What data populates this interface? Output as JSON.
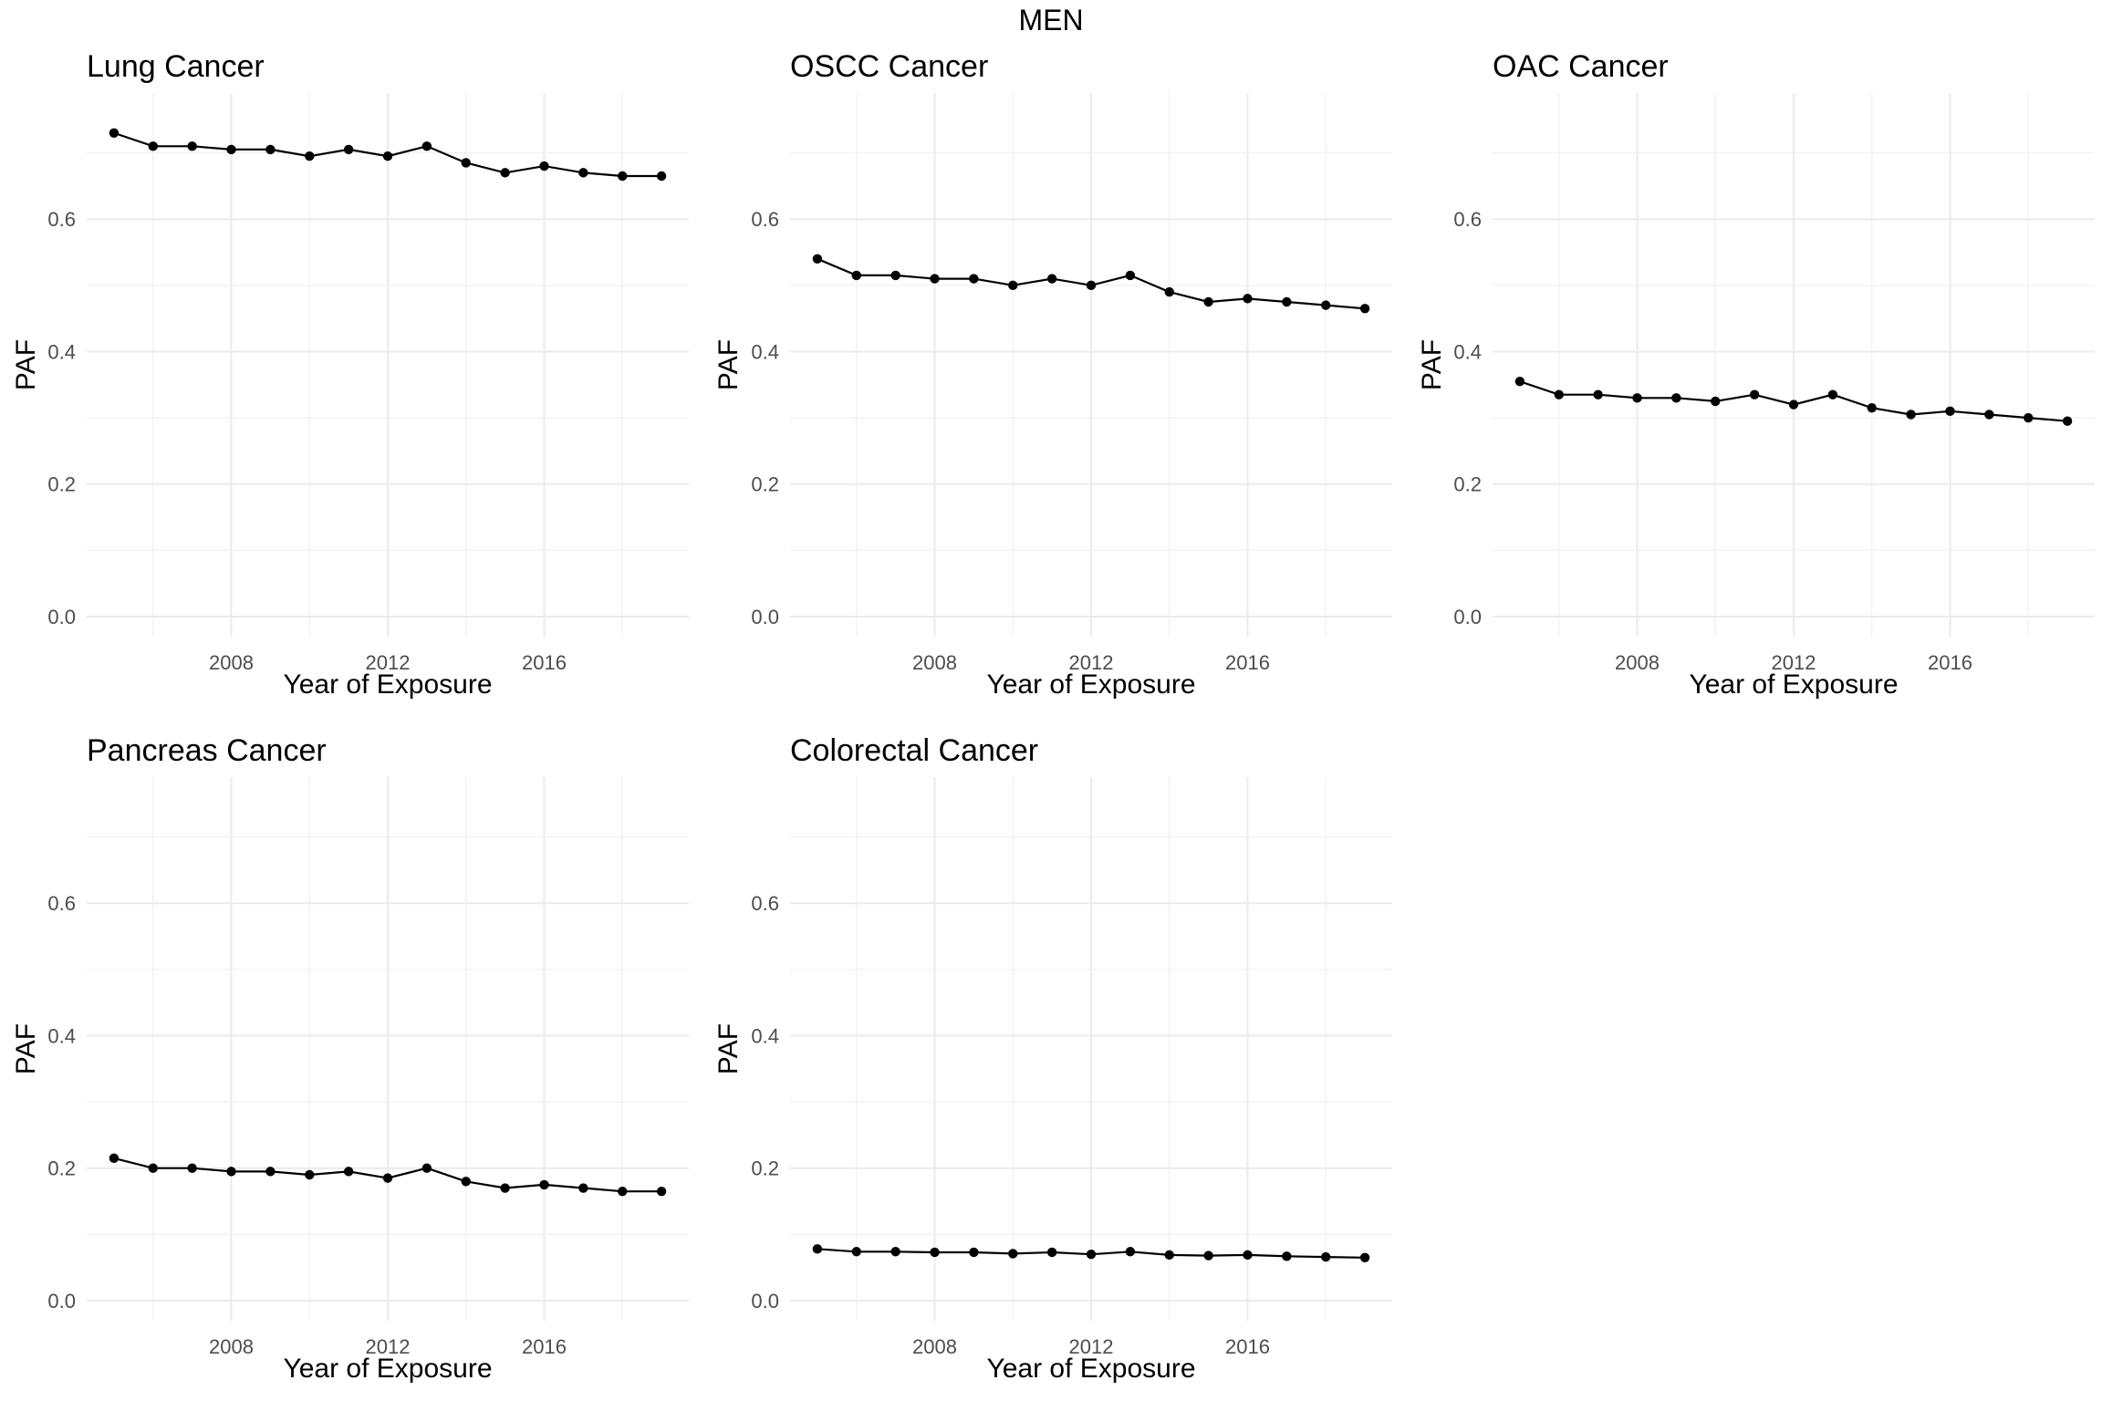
{
  "figure": {
    "title": "MEN"
  },
  "chart_data": [
    {
      "type": "line",
      "title": "Lung Cancer",
      "xlabel": "Year of Exposure",
      "ylabel": "PAF",
      "xlim": [
        2005,
        2019
      ],
      "ylim": [
        0,
        0.76
      ],
      "xticks": [
        "2008",
        "2012",
        "2016"
      ],
      "yticks": [
        "0.0",
        "0.2",
        "0.4",
        "0.6"
      ],
      "grid": true,
      "x": [
        2005,
        2006,
        2007,
        2008,
        2009,
        2010,
        2011,
        2012,
        2013,
        2014,
        2015,
        2016,
        2017,
        2018,
        2019
      ],
      "values": [
        0.73,
        0.71,
        0.71,
        0.705,
        0.705,
        0.695,
        0.705,
        0.695,
        0.71,
        0.685,
        0.67,
        0.68,
        0.67,
        0.665,
        0.665
      ]
    },
    {
      "type": "line",
      "title": "OSCC Cancer",
      "xlabel": "Year of Exposure",
      "ylabel": "PAF",
      "xlim": [
        2005,
        2019
      ],
      "ylim": [
        0,
        0.76
      ],
      "xticks": [
        "2008",
        "2012",
        "2016"
      ],
      "yticks": [
        "0.0",
        "0.2",
        "0.4",
        "0.6"
      ],
      "grid": true,
      "x": [
        2005,
        2006,
        2007,
        2008,
        2009,
        2010,
        2011,
        2012,
        2013,
        2014,
        2015,
        2016,
        2017,
        2018,
        2019
      ],
      "values": [
        0.54,
        0.515,
        0.515,
        0.51,
        0.51,
        0.5,
        0.51,
        0.5,
        0.515,
        0.49,
        0.475,
        0.48,
        0.475,
        0.47,
        0.465
      ]
    },
    {
      "type": "line",
      "title": "OAC Cancer",
      "xlabel": "Year of Exposure",
      "ylabel": "PAF",
      "xlim": [
        2005,
        2019
      ],
      "ylim": [
        0,
        0.76
      ],
      "xticks": [
        "2008",
        "2012",
        "2016"
      ],
      "yticks": [
        "0.0",
        "0.2",
        "0.4",
        "0.6"
      ],
      "grid": true,
      "x": [
        2005,
        2006,
        2007,
        2008,
        2009,
        2010,
        2011,
        2012,
        2013,
        2014,
        2015,
        2016,
        2017,
        2018,
        2019
      ],
      "values": [
        0.355,
        0.335,
        0.335,
        0.33,
        0.33,
        0.325,
        0.335,
        0.32,
        0.335,
        0.315,
        0.305,
        0.31,
        0.305,
        0.3,
        0.295
      ]
    },
    {
      "type": "line",
      "title": "Pancreas Cancer",
      "xlabel": "Year of Exposure",
      "ylabel": "PAF",
      "xlim": [
        2005,
        2019
      ],
      "ylim": [
        0,
        0.76
      ],
      "xticks": [
        "2008",
        "2012",
        "2016"
      ],
      "yticks": [
        "0.0",
        "0.2",
        "0.4",
        "0.6"
      ],
      "grid": true,
      "x": [
        2005,
        2006,
        2007,
        2008,
        2009,
        2010,
        2011,
        2012,
        2013,
        2014,
        2015,
        2016,
        2017,
        2018,
        2019
      ],
      "values": [
        0.215,
        0.2,
        0.2,
        0.195,
        0.195,
        0.19,
        0.195,
        0.185,
        0.2,
        0.18,
        0.17,
        0.175,
        0.17,
        0.165,
        0.165
      ]
    },
    {
      "type": "line",
      "title": "Colorectal Cancer",
      "xlabel": "Year of Exposure",
      "ylabel": "PAF",
      "xlim": [
        2005,
        2019
      ],
      "ylim": [
        0,
        0.76
      ],
      "xticks": [
        "2008",
        "2012",
        "2016"
      ],
      "yticks": [
        "0.0",
        "0.2",
        "0.4",
        "0.6"
      ],
      "grid": true,
      "x": [
        2005,
        2006,
        2007,
        2008,
        2009,
        2010,
        2011,
        2012,
        2013,
        2014,
        2015,
        2016,
        2017,
        2018,
        2019
      ],
      "values": [
        0.078,
        0.074,
        0.074,
        0.073,
        0.073,
        0.071,
        0.073,
        0.07,
        0.074,
        0.069,
        0.068,
        0.069,
        0.067,
        0.066,
        0.065
      ]
    }
  ]
}
